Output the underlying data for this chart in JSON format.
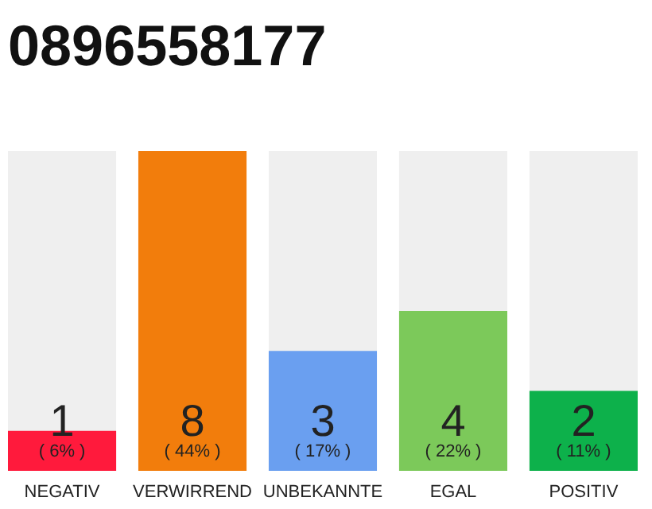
{
  "chart_data": {
    "type": "bar",
    "title": "0896558177",
    "categories": [
      "NEGATIV",
      "VERWIRREND",
      "UNBEKANNTE",
      "EGAL",
      "POSITIV"
    ],
    "values": [
      1,
      8,
      3,
      4,
      2
    ],
    "colors": [
      "#ff1a3c",
      "#f27d0c",
      "#6a9ff0",
      "#7cc95a",
      "#0db14b"
    ],
    "tick_labels": "x",
    "data_labels": true,
    "annotations": [
      {
        "text": "( 6% )",
        "x": "NEGATIV",
        "y": 0
      },
      {
        "text": "( 44% )",
        "x": "VERWIRREND",
        "y": 0
      },
      {
        "text": "( 17% )",
        "x": "UNBEKANNTE",
        "y": 0
      },
      {
        "text": "( 22% )",
        "x": "EGAL",
        "y": 0
      },
      {
        "text": "( 11% )",
        "x": "POSITIV",
        "y": 0
      }
    ]
  }
}
